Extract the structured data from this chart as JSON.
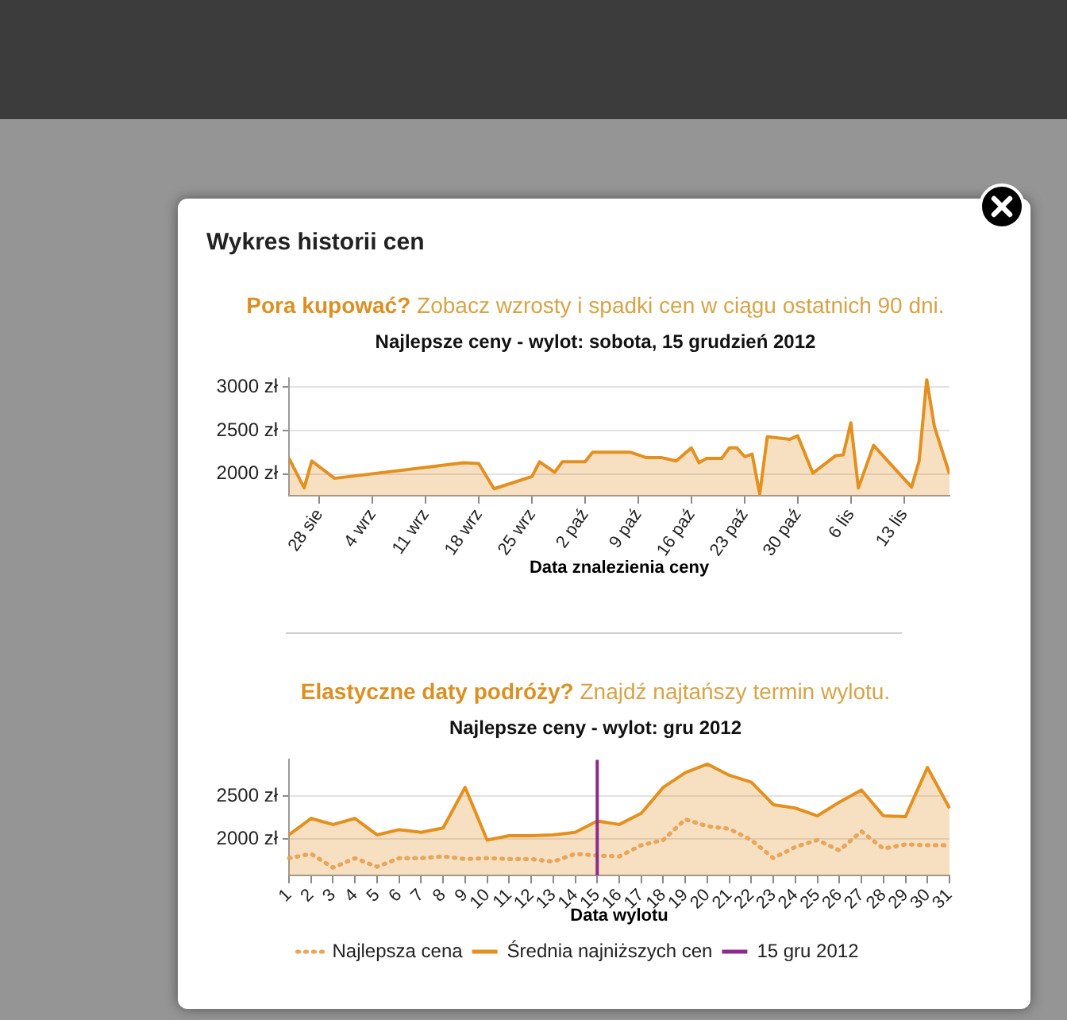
{
  "chart_data": [
    {
      "type": "area",
      "title": "Pora kupować? Zobacz wzrosty i spadki cen w ciągu ostatnich 90 dni.",
      "subtitle": "Najlepsze ceny - wylot: sobota, 15 grudzień 2012",
      "xlabel": "Data znalezienia ceny",
      "annotations": [
        "Wykres historii cen"
      ],
      "x": [
        "--08-24",
        "--08-26",
        "--08-27",
        "--08-30",
        "--09-16",
        "--09-18",
        "--09-20",
        "--09-25",
        "--09-26",
        "--09-28",
        "--09-29",
        "--10-02",
        "--10-03",
        "--10-08",
        "--10-10",
        "--10-12",
        "--10-14",
        "--10-16",
        "--10-17",
        "--10-18",
        "--10-20",
        "--10-21",
        "--10-22",
        "--10-23",
        "--10-24",
        "--10-25",
        "--10-26",
        "--10-29",
        "--10-30",
        "--11-01",
        "--11-04",
        "--11-05",
        "--11-06",
        "--11-07",
        "--11-09",
        "--11-14",
        "--11-15",
        "--11-16",
        "--11-17",
        "--11-19"
      ],
      "values": [
        2180,
        1840,
        2150,
        1950,
        2130,
        2120,
        1830,
        1970,
        2140,
        2020,
        2140,
        2140,
        2250,
        2250,
        2190,
        2190,
        2150,
        2300,
        2130,
        2180,
        2180,
        2300,
        2300,
        2200,
        2230,
        1770,
        2430,
        2400,
        2440,
        2010,
        2210,
        2220,
        2590,
        1840,
        2330,
        1850,
        2150,
        3090,
        2550,
        2000
      ],
      "color": "#e3901f",
      "xlim": [
        "--08-24",
        "--11-19"
      ],
      "xticks": [
        {
          "value": "--08-28",
          "label": "28 sie"
        },
        {
          "value": "--09-04",
          "label": "4 wrz"
        },
        {
          "value": "--09-11",
          "label": "11 wrz"
        },
        {
          "value": "--09-18",
          "label": "18 wrz"
        },
        {
          "value": "--09-25",
          "label": "25 wrz"
        },
        {
          "value": "--10-02",
          "label": "2 paź"
        },
        {
          "value": "--10-09",
          "label": "9 paź"
        },
        {
          "value": "--10-16",
          "label": "16 paź"
        },
        {
          "value": "--10-23",
          "label": "23 paź"
        },
        {
          "value": "--10-30",
          "label": "30 paź"
        },
        {
          "value": "--11-06",
          "label": "6 lis"
        },
        {
          "value": "--11-13",
          "label": "13 lis"
        }
      ],
      "ylim": [
        1750,
        3100
      ],
      "yticks": [
        {
          "value": 2000,
          "label": "2000 zł"
        },
        {
          "value": 2500,
          "label": "2500 zł"
        },
        {
          "value": 3000,
          "label": "3000 zł"
        }
      ],
      "grid": "y",
      "marker": "none"
    },
    {
      "type": "line",
      "title": "Elastyczne daty podróży? Znajdź najtańszy termin wylotu.",
      "subtitle": "Najlepsze ceny - wylot: gru 2012",
      "xlabel": "Data wylotu",
      "categories": [
        "1",
        "2",
        "3",
        "4",
        "5",
        "6",
        "7",
        "8",
        "9",
        "10",
        "11",
        "12",
        "13",
        "14",
        "15",
        "16",
        "17",
        "18",
        "19",
        "20",
        "21",
        "22",
        "23",
        "24",
        "25",
        "26",
        "27",
        "28",
        "29",
        "30",
        "31"
      ],
      "series": [
        {
          "name": "Najlepsza cena",
          "type": "line",
          "line_style": "dotted",
          "color": "#e9a55a",
          "values": [
            1780,
            1830,
            1670,
            1780,
            1680,
            1780,
            1780,
            1800,
            1770,
            1780,
            1770,
            1770,
            1740,
            1830,
            1810,
            1800,
            1930,
            1990,
            2230,
            2150,
            2120,
            1990,
            1780,
            1910,
            1990,
            1870,
            2090,
            1890,
            1940,
            1930,
            1930
          ]
        },
        {
          "name": "Średnia najniższych cen",
          "type": "area",
          "color": "#e3901f",
          "values": [
            2050,
            2240,
            2170,
            2240,
            2050,
            2110,
            2080,
            2130,
            2600,
            1990,
            2040,
            2040,
            2050,
            2080,
            2210,
            2170,
            2300,
            2600,
            2770,
            2870,
            2740,
            2660,
            2400,
            2360,
            2270,
            2430,
            2570,
            2270,
            2260,
            2830,
            2360
          ]
        }
      ],
      "ylim": [
        1580,
        2920
      ],
      "yticks": [
        {
          "value": 2000,
          "label": "2000 zł"
        },
        {
          "value": 2500,
          "label": "2500 zł"
        }
      ],
      "ref_lines": [
        {
          "axis": "x",
          "value": "15",
          "label": "15 gru 2012",
          "color": "#8e2a8e"
        }
      ],
      "grid": "y",
      "legend": "bottom",
      "marker": "none"
    }
  ]
}
